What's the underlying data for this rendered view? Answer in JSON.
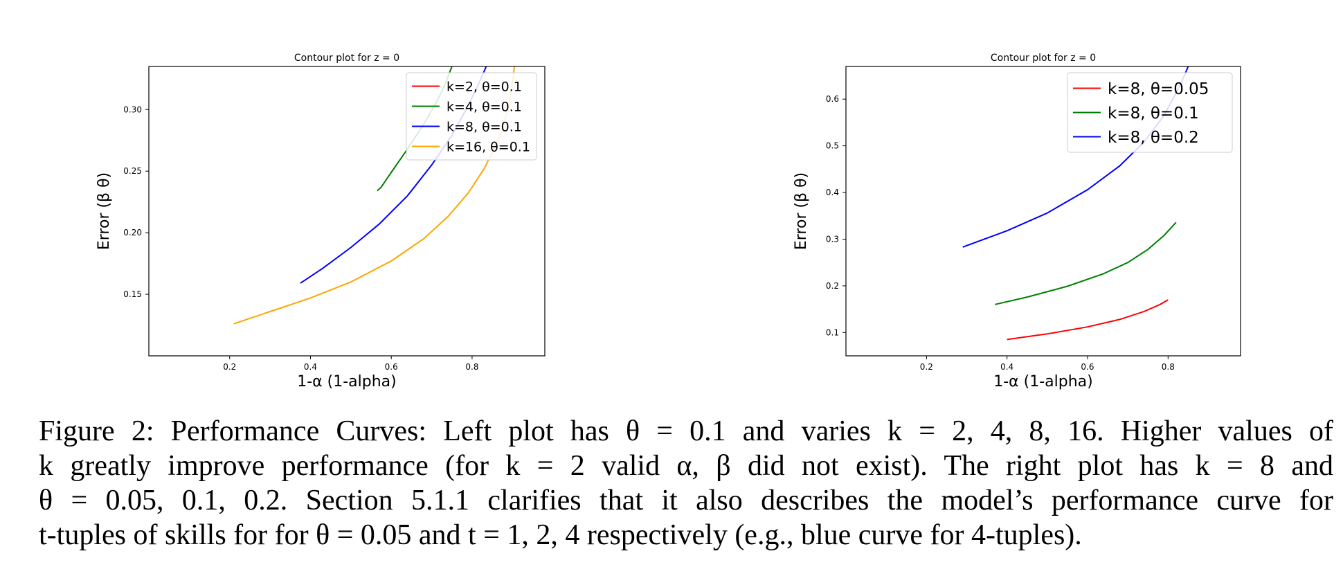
{
  "chart_data": [
    {
      "type": "line",
      "title": "Contour plot for z = 0",
      "xlabel": "1-α (1-alpha)",
      "ylabel": "Error (β θ)",
      "xlim": [
        0.0,
        0.98
      ],
      "ylim": [
        0.1,
        0.335
      ],
      "xticks": [
        0.2,
        0.4,
        0.6,
        0.8
      ],
      "xtick_labels": [
        "0.2",
        "0.4",
        "0.6",
        "0.8"
      ],
      "yticks": [
        0.15,
        0.2,
        0.25,
        0.3
      ],
      "ytick_labels": [
        "0.15",
        "0.20",
        "0.25",
        "0.30"
      ],
      "grid": false,
      "legend_position": "top-right",
      "series": [
        {
          "name": "k=2, θ=0.1",
          "color": "#ff0000",
          "x": [],
          "y": []
        },
        {
          "name": "k=4, θ=0.1",
          "color": "#008000",
          "x": [
            0.565,
            0.575,
            0.6,
            0.64,
            0.68,
            0.71,
            0.73,
            0.75
          ],
          "y": [
            0.234,
            0.237,
            0.249,
            0.268,
            0.288,
            0.305,
            0.318,
            0.335
          ]
        },
        {
          "name": "k=8, θ=0.1",
          "color": "#0000ff",
          "x": [
            0.375,
            0.43,
            0.5,
            0.57,
            0.64,
            0.7,
            0.75,
            0.79,
            0.815,
            0.835
          ],
          "y": [
            0.159,
            0.171,
            0.188,
            0.207,
            0.23,
            0.255,
            0.279,
            0.303,
            0.32,
            0.335
          ]
        },
        {
          "name": "k=16, θ=0.1",
          "color": "#ffa500",
          "x": [
            0.21,
            0.3,
            0.4,
            0.5,
            0.6,
            0.68,
            0.74,
            0.79,
            0.83,
            0.86,
            0.89,
            0.905
          ],
          "y": [
            0.126,
            0.136,
            0.147,
            0.16,
            0.177,
            0.195,
            0.213,
            0.232,
            0.252,
            0.272,
            0.3,
            0.335
          ]
        }
      ]
    },
    {
      "type": "line",
      "title": "Contour plot for z = 0",
      "xlabel": "1-α (1-alpha)",
      "ylabel": "Error (β θ)",
      "xlim": [
        0.0,
        0.98
      ],
      "ylim": [
        0.05,
        0.67
      ],
      "xticks": [
        0.2,
        0.4,
        0.6,
        0.8
      ],
      "xtick_labels": [
        "0.2",
        "0.4",
        "0.6",
        "0.8"
      ],
      "yticks": [
        0.1,
        0.2,
        0.3,
        0.4,
        0.5,
        0.6
      ],
      "ytick_labels": [
        "0.1",
        "0.2",
        "0.3",
        "0.4",
        "0.5",
        "0.6"
      ],
      "grid": false,
      "legend_position": "top-right",
      "series": [
        {
          "name": "k=8, θ=0.05",
          "color": "#ff0000",
          "x": [
            0.4,
            0.5,
            0.6,
            0.68,
            0.74,
            0.78,
            0.8
          ],
          "y": [
            0.085,
            0.097,
            0.112,
            0.128,
            0.145,
            0.16,
            0.17
          ]
        },
        {
          "name": "k=8, θ=0.1",
          "color": "#008000",
          "x": [
            0.37,
            0.45,
            0.55,
            0.64,
            0.7,
            0.75,
            0.79,
            0.82
          ],
          "y": [
            0.16,
            0.176,
            0.199,
            0.226,
            0.25,
            0.278,
            0.308,
            0.336
          ]
        },
        {
          "name": "k=8, θ=0.2",
          "color": "#0000ff",
          "x": [
            0.29,
            0.4,
            0.5,
            0.6,
            0.68,
            0.74,
            0.79,
            0.83,
            0.85
          ],
          "y": [
            0.283,
            0.318,
            0.356,
            0.406,
            0.457,
            0.508,
            0.565,
            0.63,
            0.67
          ]
        }
      ]
    }
  ],
  "caption": {
    "lines": [
      "Figure 2: Performance Curves: Left plot has θ = 0.1 and varies k = 2, 4, 8, 16. Higher values of",
      "k greatly improve performance (for k = 2 valid α, β did not exist). The right plot has k = 8 and",
      "θ = 0.05, 0.1, 0.2. Section 5.1.1 clarifies that it also describes the model’s performance curve for",
      "t-tuples of skills for for θ = 0.05 and t = 1, 2, 4 respectively (e.g., blue curve for 4-tuples)."
    ]
  }
}
